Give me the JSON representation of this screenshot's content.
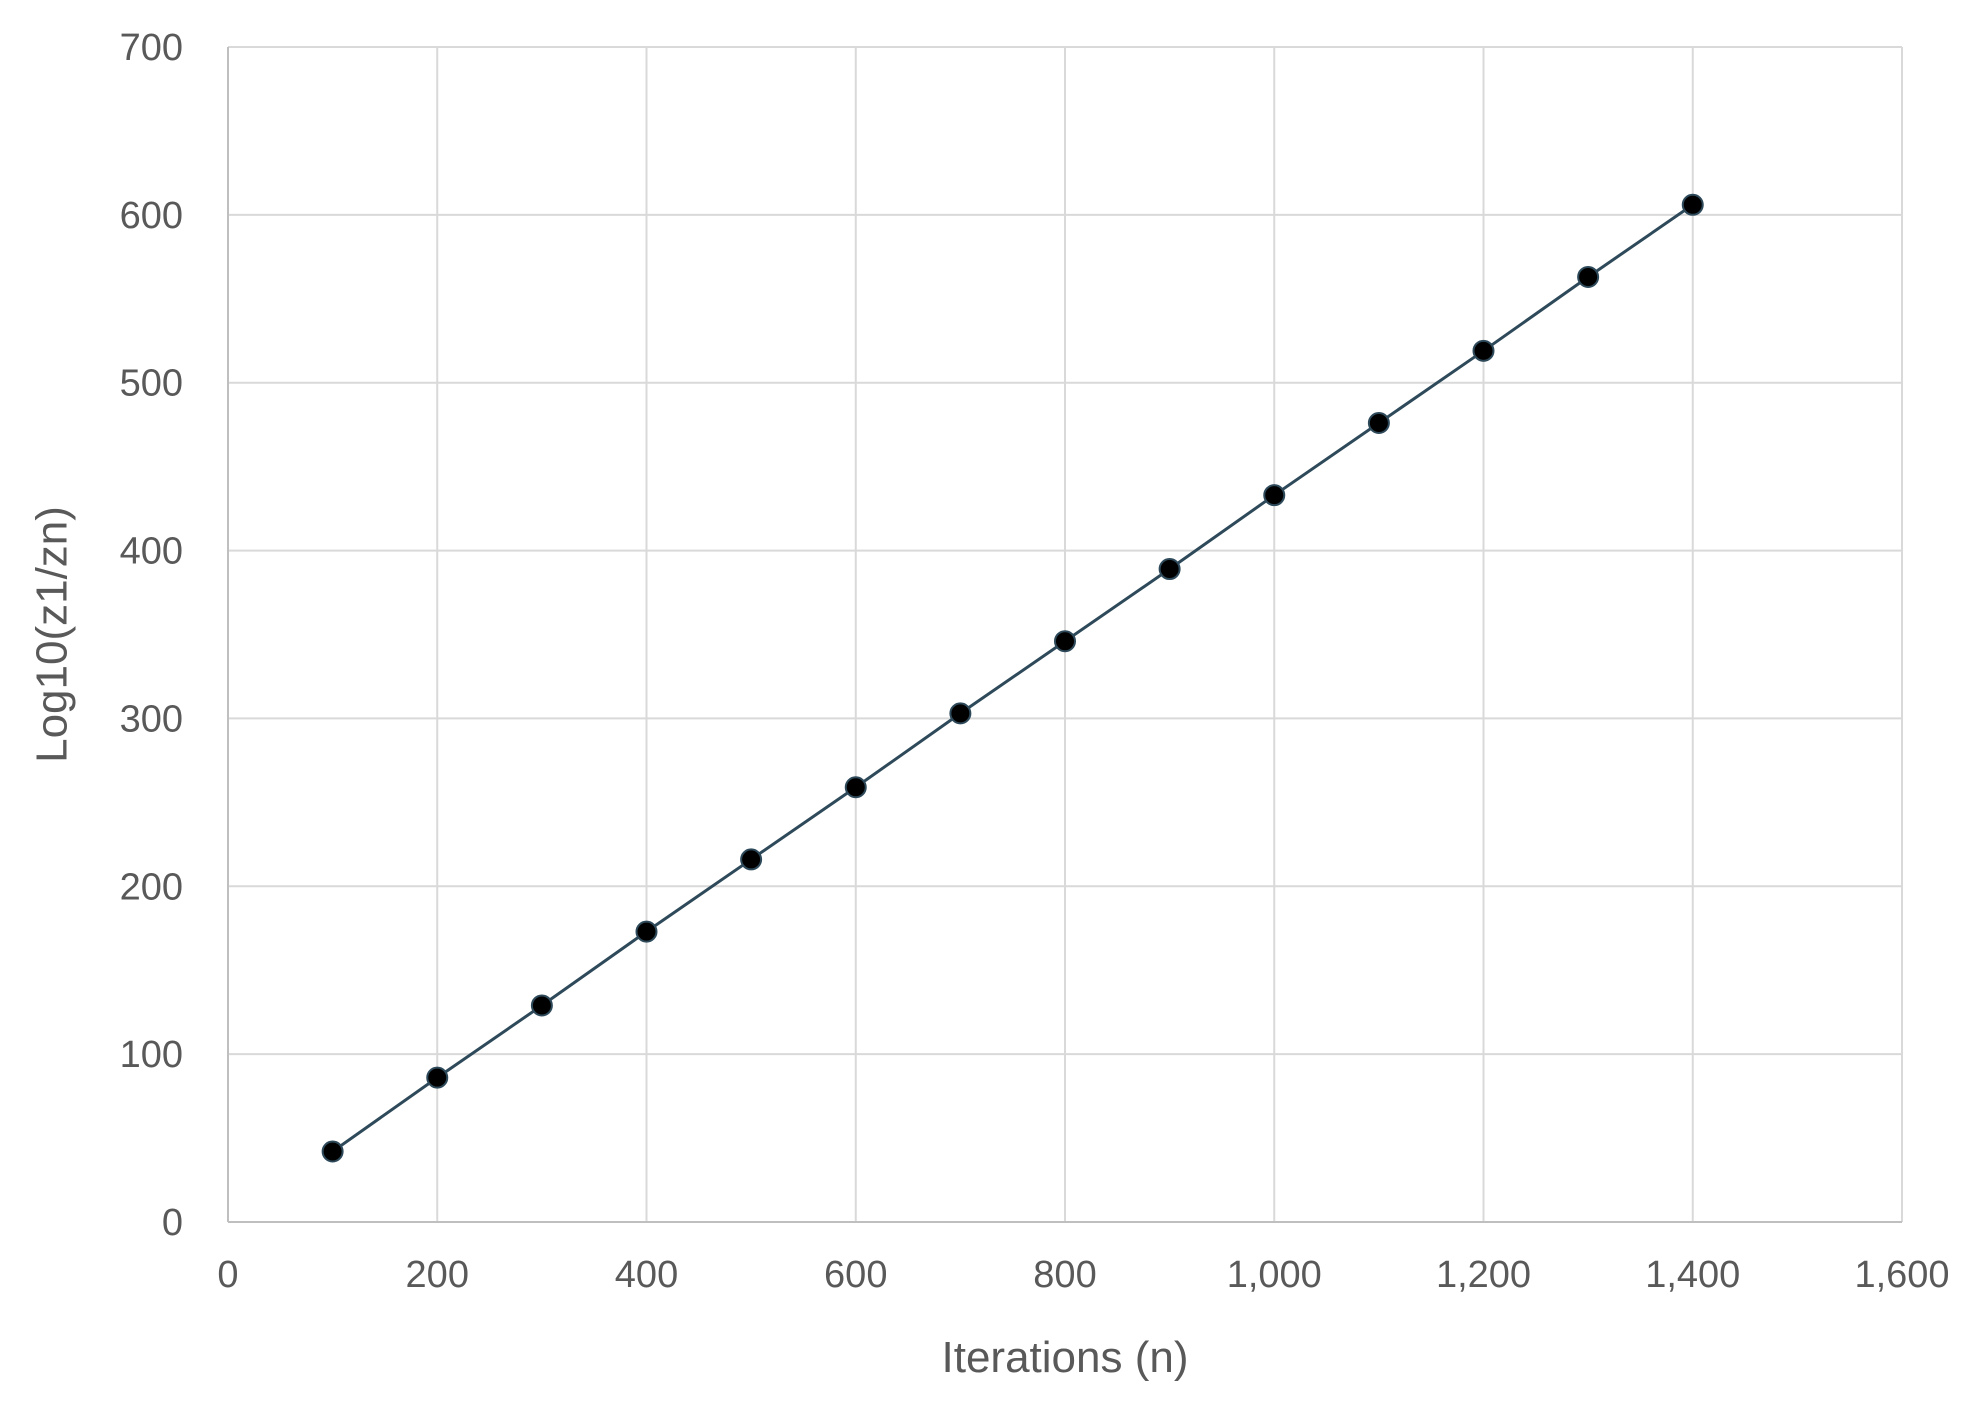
{
  "chart_data": {
    "type": "scatter",
    "title": "",
    "xlabel": "Iterations (n)",
    "ylabel": "Log10(z1/zn)",
    "xlim": [
      0,
      1600
    ],
    "ylim": [
      0,
      700
    ],
    "xticks": [
      0,
      200,
      400,
      600,
      800,
      1000,
      1200,
      1400,
      1600
    ],
    "xtick_labels": [
      "0",
      "200",
      "400",
      "600",
      "800",
      "1,000",
      "1,200",
      "1,400",
      "1,600"
    ],
    "yticks": [
      0,
      100,
      200,
      300,
      400,
      500,
      600,
      700
    ],
    "ytick_labels": [
      "0",
      "100",
      "200",
      "300",
      "400",
      "500",
      "600",
      "700"
    ],
    "grid": true,
    "legend": "none",
    "series": [
      {
        "x": [
          100,
          200,
          300,
          400,
          500,
          600,
          700,
          800,
          900,
          1000,
          1100,
          1200,
          1300,
          1400
        ],
        "y": [
          42,
          86,
          129,
          173,
          216,
          259,
          303,
          346,
          389,
          433,
          476,
          519,
          563,
          606
        ],
        "line_color": "#2e4a5a",
        "marker_color": "#000000"
      }
    ]
  }
}
